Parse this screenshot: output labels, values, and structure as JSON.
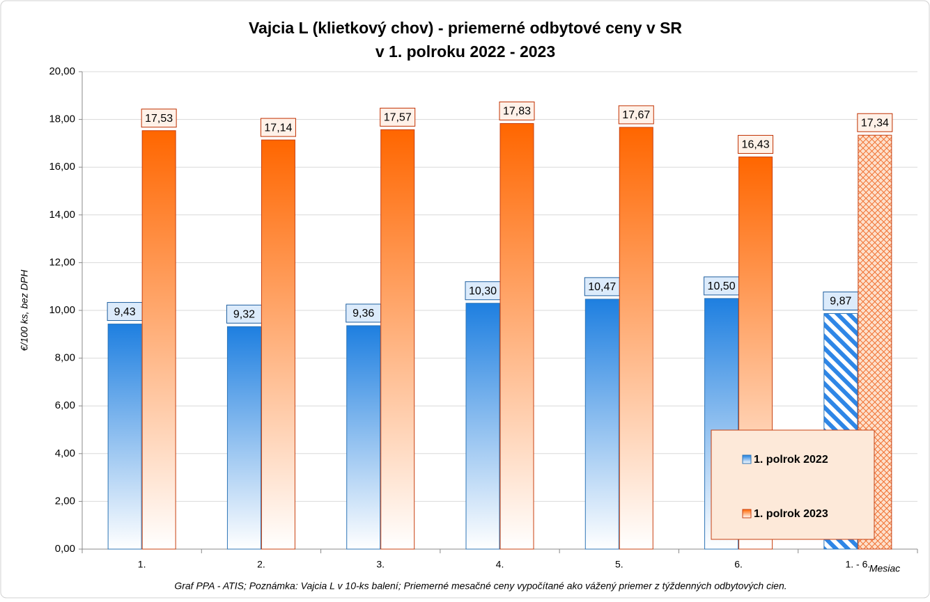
{
  "chart_data": {
    "type": "bar",
    "title": "Vajcia L (klietkový chov) - priemerné odbytové ceny v SR",
    "subtitle": "v 1. polroku 2022 - 2023",
    "y_label": "€/100 ks, bez DPH",
    "x_label": "Mesiac",
    "caption": "Graf PPA - ATIS; Poznámka: Vajcia L v 10-ks balení; Priemerné mesačné ceny vypočítané ako vážený priemer z týždenných odbytových cien.",
    "categories": [
      "1.",
      "2.",
      "3.",
      "4.",
      "5.",
      "6.",
      "1. - 6."
    ],
    "series": [
      {
        "name": "1. polrok 2022",
        "color": "#1e7fe0",
        "values": [
          9.43,
          9.32,
          9.36,
          10.3,
          10.47,
          10.5,
          9.87
        ],
        "value_labels": [
          "9,43",
          "9,32",
          "9,36",
          "10,30",
          "10,47",
          "10,50",
          "9,87"
        ]
      },
      {
        "name": "1. polrok 2023",
        "color": "#ff6600",
        "values": [
          17.53,
          17.14,
          17.57,
          17.83,
          17.67,
          16.43,
          17.34
        ],
        "value_labels": [
          "17,53",
          "17,14",
          "17,57",
          "17,83",
          "17,67",
          "16,43",
          "17,34"
        ]
      }
    ],
    "ylim": [
      0,
      20
    ],
    "yticks": [
      {
        "value": 0,
        "label": "0,00"
      },
      {
        "value": 2,
        "label": "2,00"
      },
      {
        "value": 4,
        "label": "4,00"
      },
      {
        "value": 6,
        "label": "6,00"
      },
      {
        "value": 8,
        "label": "8,00"
      },
      {
        "value": 10,
        "label": "10,00"
      },
      {
        "value": 12,
        "label": "12,00"
      },
      {
        "value": 14,
        "label": "14,00"
      },
      {
        "value": 16,
        "label": "16,00"
      },
      {
        "value": 18,
        "label": "18,00"
      },
      {
        "value": 20,
        "label": "20,00"
      }
    ],
    "grid": true,
    "legend": "lower right"
  }
}
